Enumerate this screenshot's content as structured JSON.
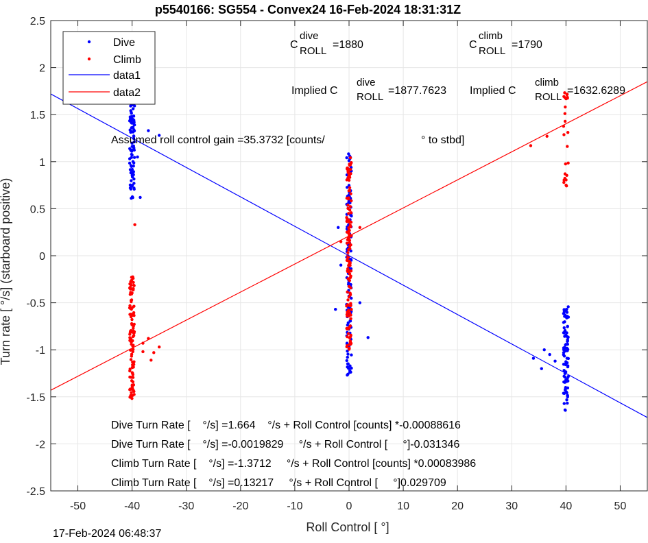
{
  "chart_data": {
    "type": "scatter",
    "title": "p5540166: SG554 - Convex24 16-Feb-2024 18:31:31Z",
    "xlabel": "Roll Control [   °]",
    "ylabel": "Turn rate [   °/s] (starboard positive)",
    "xlim": [
      -55,
      55
    ],
    "ylim": [
      -2.5,
      2.5
    ],
    "xticks": [
      -50,
      -40,
      -30,
      -20,
      -10,
      0,
      10,
      20,
      30,
      40,
      50
    ],
    "yticks": [
      -2.5,
      -2,
      -1.5,
      -1,
      -0.5,
      0,
      0.5,
      1,
      1.5,
      2,
      2.5
    ],
    "xtick_labels": [
      "-50",
      "-40",
      "-30",
      "-20",
      "-10",
      "0",
      "10",
      "20",
      "30",
      "40",
      "50"
    ],
    "ytick_labels": [
      "-2.5",
      "-2",
      "-1.5",
      "-1",
      "-0.5",
      "0",
      "0.5",
      "1",
      "1.5",
      "2",
      "2.5"
    ],
    "grid": true,
    "legend_placement": "top-left",
    "series": [
      {
        "name": "Dive",
        "kind": "points",
        "color": "#0000ff",
        "clusters": [
          {
            "x": -40,
            "y_min": 0.6,
            "y_max": 1.85,
            "count": 90
          },
          {
            "x": 0,
            "y_min": -1.3,
            "y_max": 1.1,
            "count": 130
          },
          {
            "x": 40,
            "y_min": -1.65,
            "y_max": -0.53,
            "count": 90
          }
        ],
        "scatter_points": [
          [
            -37,
            1.33
          ],
          [
            -35,
            1.28
          ],
          [
            -38.5,
            0.62
          ],
          [
            -39,
            1.05
          ],
          [
            -2.5,
            -0.57
          ],
          [
            3.5,
            -0.87
          ],
          [
            -1.5,
            -0.1
          ],
          [
            -2,
            0.3
          ],
          [
            2,
            -0.5
          ],
          [
            34,
            -1.09
          ],
          [
            35.5,
            -1.2
          ],
          [
            36,
            -1.0
          ],
          [
            37,
            -1.05
          ],
          [
            38,
            -1.12
          ]
        ]
      },
      {
        "name": "Climb",
        "kind": "points",
        "color": "#ff0000",
        "clusters": [
          {
            "x": -40,
            "y_min": -1.52,
            "y_max": -0.2,
            "count": 110
          },
          {
            "x": 0,
            "y_min": -1.0,
            "y_max": 1.05,
            "count": 140
          },
          {
            "x": 40,
            "y_min": 0.72,
            "y_max": 1.77,
            "count": 25
          }
        ],
        "scatter_points": [
          [
            -39.5,
            0.33
          ],
          [
            -38,
            -0.93
          ],
          [
            -37,
            -0.88
          ],
          [
            -36,
            -1.03
          ],
          [
            -35,
            -0.97
          ],
          [
            -36.5,
            -1.11
          ],
          [
            -38,
            -1.02
          ],
          [
            33.5,
            1.17
          ],
          [
            36.5,
            1.27
          ],
          [
            -1.5,
            0.15
          ],
          [
            2,
            0.3
          ]
        ]
      },
      {
        "name": "data1",
        "kind": "line",
        "color": "#0000ff",
        "x": [
          -55,
          55
        ],
        "y": [
          1.72,
          -1.72
        ]
      },
      {
        "name": "data2",
        "kind": "line",
        "color": "#ff0000",
        "x": [
          -55,
          55
        ],
        "y": [
          -1.43,
          1.85
        ]
      }
    ]
  },
  "annotations": {
    "c_dive": {
      "base": "C",
      "sup": "dive",
      "sub": "ROLL",
      "value": "=1880"
    },
    "c_climb": {
      "base": "C",
      "sup": "climb",
      "sub": "ROLL",
      "value": "=1790"
    },
    "implied_dive": {
      "base": "Implied C",
      "sup": "dive",
      "sub": "ROLL",
      "value": "=1877.7623"
    },
    "implied_climb": {
      "base": "Implied C",
      "sup": "climb",
      "sub": "ROLL",
      "value": "=1632.6289"
    },
    "gain_part1": "Assumed roll control gain =35.3732 [counts/",
    "gain_part2": "° to stbd]",
    "fit_lines": [
      "Dive Turn Rate [    °/s] =1.664    °/s + Roll Control [counts] *-0.00088616",
      "Dive Turn Rate [    °/s] =-0.0019829     °/s + Roll Control [     °]-0.031346",
      "Climb Turn Rate [    °/s] =-1.3712     °/s + Roll Control [counts] *0.00083986",
      "Climb Turn Rate [    °/s] =0.13217     °/s + Roll Control [     °]0.029709"
    ]
  },
  "footer": {
    "timestamp": "17-Feb-2024 06:48:37"
  }
}
